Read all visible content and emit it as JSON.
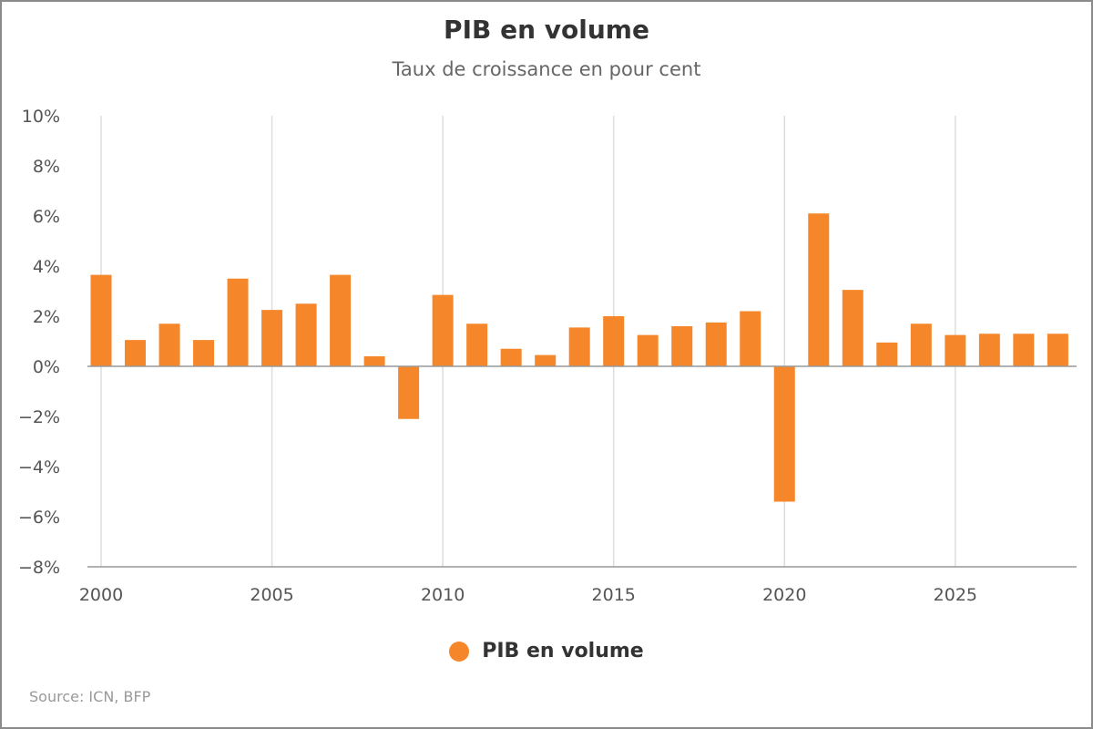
{
  "header": {
    "title": "PIB en volume",
    "subtitle": "Taux de croissance en pour cent"
  },
  "source": "Source: ICN, BFP",
  "colors": {
    "bar": "#f5872a",
    "grid": "#dddddd",
    "axis": "#999999"
  },
  "chart_data": {
    "type": "bar",
    "title": "PIB en volume",
    "subtitle": "Taux de croissance en pour cent",
    "x": [
      2000,
      2001,
      2002,
      2003,
      2004,
      2005,
      2006,
      2007,
      2008,
      2009,
      2010,
      2011,
      2012,
      2013,
      2014,
      2015,
      2016,
      2017,
      2018,
      2019,
      2020,
      2021,
      2022,
      2023,
      2024,
      2025,
      2026,
      2027,
      2028
    ],
    "series": [
      {
        "name": "PIB en volume",
        "color": "#f5872a",
        "values": [
          3.65,
          1.05,
          1.7,
          1.05,
          3.5,
          2.25,
          2.5,
          3.65,
          0.4,
          -2.1,
          2.85,
          1.7,
          0.7,
          0.45,
          1.55,
          2.0,
          1.25,
          1.6,
          1.75,
          2.2,
          -5.4,
          6.1,
          3.05,
          0.95,
          1.7,
          1.25,
          1.3,
          1.3,
          1.3
        ]
      }
    ],
    "xticks": [
      "2000",
      "2005",
      "2010",
      "2015",
      "2020",
      "2025"
    ],
    "xtick_values": [
      2000,
      2005,
      2010,
      2015,
      2020,
      2025
    ],
    "yticks": [
      "10%",
      "8%",
      "6%",
      "4%",
      "2%",
      "0%",
      "−2%",
      "−4%",
      "−6%",
      "−8%"
    ],
    "ytick_values": [
      10,
      8,
      6,
      4,
      2,
      0,
      -2,
      -4,
      -6,
      -8
    ],
    "ylim": [
      -8,
      10
    ],
    "grid": "vertical",
    "legend": "bottom-center"
  }
}
